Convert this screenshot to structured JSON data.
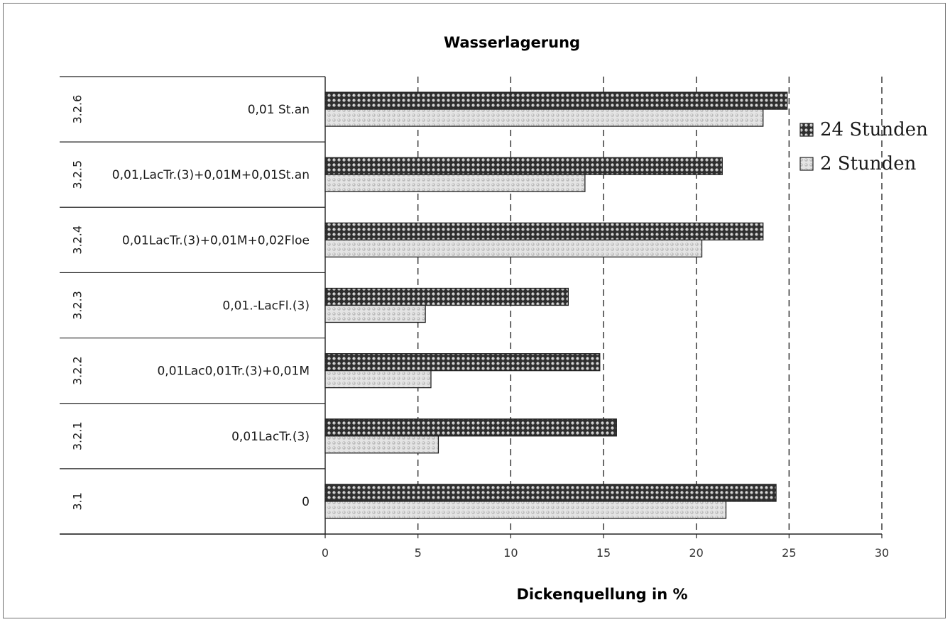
{
  "chart_data": {
    "type": "bar",
    "orientation": "horizontal",
    "title": "Wasserlagerung",
    "xlabel": "Dickenquellung in %",
    "ylabel": "",
    "xlim": [
      0,
      30
    ],
    "xticks": [
      0,
      5,
      10,
      15,
      20,
      25,
      30
    ],
    "grid": "vertical dashed",
    "legend_position": "right",
    "categories": [
      {
        "code": "3.2.6",
        "label": "0,01 St.an"
      },
      {
        "code": "3.2.5",
        "label": "0,01,LacTr.(3)+0,01M+0,01St.an"
      },
      {
        "code": "3.2.4",
        "label": "0,01LacTr.(3)+0,01M+0,02Floe"
      },
      {
        "code": "3.2.3",
        "label": "0,01.-LacFl.(3)"
      },
      {
        "code": "3.2.2",
        "label": "0,01Lac0,01Tr.(3)+0,01M"
      },
      {
        "code": "3.2.1",
        "label": "0,01LacTr.(3)"
      },
      {
        "code": "3.1",
        "label": "0"
      }
    ],
    "series": [
      {
        "name": "24 Stunden",
        "color": "#3a3a3a",
        "pattern": "dark-dots",
        "values": [
          24.9,
          21.4,
          23.6,
          13.1,
          14.8,
          15.7,
          24.3
        ]
      },
      {
        "name": "2 Stunden",
        "color": "#c8c8c8",
        "pattern": "light-dots",
        "values": [
          23.6,
          14.0,
          20.3,
          5.4,
          5.7,
          6.1,
          21.6
        ]
      }
    ]
  }
}
